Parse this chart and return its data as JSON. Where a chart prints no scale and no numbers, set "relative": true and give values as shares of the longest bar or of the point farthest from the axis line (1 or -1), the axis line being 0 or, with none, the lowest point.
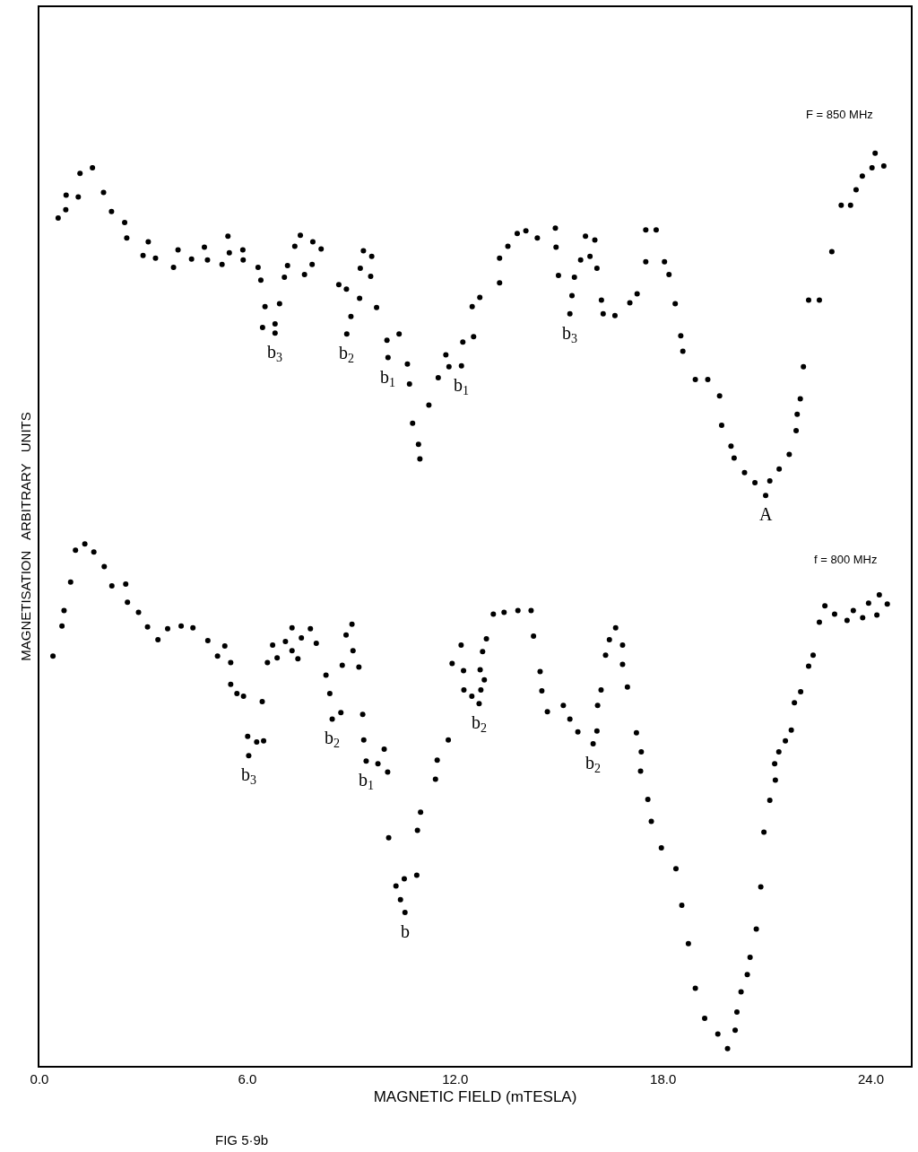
{
  "chart_data": {
    "type": "scatter",
    "relative": true,
    "xlabel": "MAGNETIC FIELD (mTESLA)",
    "ylabel": "MAGNETISATION   ARBITRARY   UNITS",
    "xlim": [
      0,
      25.15
    ],
    "xticks": [
      {
        "value": 0,
        "label": "0.0"
      },
      {
        "value": 6,
        "label": "6.0"
      },
      {
        "value": 12,
        "label": "12.0"
      },
      {
        "value": 18,
        "label": "18.0"
      },
      {
        "value": 24,
        "label": "24.0"
      }
    ],
    "tick_labels": "x",
    "legend": false,
    "marker": "circle",
    "series": [
      {
        "name": "F = 850 MHz",
        "color": "#000000",
        "x": [
          0.54,
          0.76,
          0.77,
          1.12,
          1.17,
          1.53,
          1.85,
          2.08,
          2.46,
          2.52,
          3.14,
          2.99,
          3.35,
          3.87,
          4.0,
          4.39,
          4.76,
          4.85,
          5.27,
          5.44,
          5.48,
          5.87,
          5.88,
          6.31,
          6.39,
          6.51,
          6.93,
          6.44,
          6.8,
          6.8,
          7.07,
          7.16,
          7.37,
          7.53,
          7.65,
          7.87,
          7.89,
          8.13,
          8.64,
          8.86,
          9.35,
          9.59,
          9.26,
          9.56,
          9.24,
          9.73,
          8.99,
          8.87,
          10.03,
          10.38,
          10.06,
          10.62,
          10.68,
          11.24,
          10.77,
          10.94,
          10.98,
          11.51,
          11.82,
          11.73,
          12.18,
          12.22,
          12.53,
          12.49,
          12.71,
          13.28,
          13.28,
          13.52,
          13.79,
          14.04,
          14.37,
          14.89,
          14.91,
          14.98,
          15.44,
          15.37,
          15.31,
          15.76,
          16.03,
          15.62,
          15.89,
          16.09,
          16.22,
          16.27,
          16.61,
          17.04,
          17.25,
          17.5,
          17.8,
          17.5,
          18.04,
          18.17,
          18.35,
          18.51,
          18.57,
          18.93,
          19.29,
          19.63,
          19.69,
          19.96,
          20.05,
          20.35,
          20.65,
          20.96,
          21.08,
          21.35,
          21.64,
          21.84,
          21.87,
          21.96,
          22.05,
          22.2,
          22.51,
          22.87,
          23.14,
          23.41,
          23.57,
          23.75,
          24.03,
          24.12,
          24.37
        ],
        "values": [
          0.929,
          0.938,
          0.954,
          0.952,
          0.978,
          0.984,
          0.957,
          0.936,
          0.924,
          0.907,
          0.903,
          0.888,
          0.885,
          0.875,
          0.894,
          0.884,
          0.897,
          0.883,
          0.878,
          0.909,
          0.891,
          0.894,
          0.883,
          0.875,
          0.861,
          0.832,
          0.835,
          0.809,
          0.813,
          0.803,
          0.864,
          0.877,
          0.898,
          0.91,
          0.867,
          0.878,
          0.903,
          0.895,
          0.856,
          0.851,
          0.893,
          0.887,
          0.874,
          0.865,
          0.841,
          0.831,
          0.821,
          0.802,
          0.795,
          0.802,
          0.776,
          0.769,
          0.747,
          0.724,
          0.704,
          0.681,
          0.665,
          0.754,
          0.766,
          0.779,
          0.767,
          0.793,
          0.799,
          0.832,
          0.842,
          0.858,
          0.885,
          0.898,
          0.912,
          0.915,
          0.907,
          0.918,
          0.897,
          0.866,
          0.864,
          0.844,
          0.824,
          0.909,
          0.905,
          0.883,
          0.887,
          0.874,
          0.839,
          0.824,
          0.822,
          0.836,
          0.846,
          0.916,
          0.916,
          0.881,
          0.881,
          0.867,
          0.835,
          0.8,
          0.783,
          0.752,
          0.752,
          0.734,
          0.702,
          0.679,
          0.666,
          0.65,
          0.639,
          0.625,
          0.641,
          0.654,
          0.67,
          0.696,
          0.714,
          0.731,
          0.766,
          0.839,
          0.839,
          0.892,
          0.943,
          0.943,
          0.96,
          0.975,
          0.984,
          1.0,
          0.986
        ]
      },
      {
        "name": "f = 800 MHz",
        "color": "#000000",
        "x": [
          0.39,
          0.65,
          0.71,
          0.9,
          1.04,
          1.31,
          1.57,
          1.87,
          2.09,
          2.49,
          2.54,
          2.86,
          3.12,
          3.42,
          3.7,
          4.09,
          4.43,
          4.86,
          5.14,
          5.35,
          5.52,
          5.52,
          5.7,
          5.89,
          6.43,
          6.01,
          6.27,
          6.47,
          6.04,
          6.58,
          6.86,
          6.73,
          7.1,
          7.29,
          7.29,
          7.46,
          7.56,
          7.82,
          7.99,
          8.27,
          8.38,
          8.45,
          8.7,
          8.74,
          8.85,
          9.02,
          9.05,
          9.22,
          9.33,
          9.36,
          9.43,
          9.77,
          9.95,
          10.05,
          10.08,
          10.29,
          10.53,
          10.89,
          10.42,
          10.55,
          11.0,
          10.91,
          11.48,
          11.43,
          11.8,
          11.91,
          12.17,
          12.24,
          12.25,
          12.48,
          12.72,
          12.74,
          12.69,
          12.84,
          12.79,
          12.9,
          13.1,
          13.41,
          13.81,
          14.19,
          14.26,
          14.45,
          14.5,
          14.66,
          15.12,
          15.31,
          15.54,
          15.98,
          16.09,
          16.11,
          16.21,
          16.34,
          16.45,
          16.63,
          16.83,
          16.83,
          16.97,
          17.23,
          17.37,
          17.35,
          17.56,
          17.66,
          17.95,
          18.37,
          18.54,
          18.73,
          18.93,
          19.2,
          19.58,
          19.86,
          20.08,
          20.13,
          20.25,
          20.43,
          20.51,
          20.69,
          20.82,
          20.91,
          21.08,
          21.24,
          21.22,
          21.34,
          21.53,
          21.7,
          21.79,
          21.97,
          22.2,
          22.33,
          22.51,
          22.67,
          22.95,
          23.31,
          23.49,
          23.76,
          23.93,
          24.17,
          24.24,
          24.47
        ],
        "values": [
          0.449,
          0.482,
          0.499,
          0.53,
          0.565,
          0.572,
          0.563,
          0.547,
          0.526,
          0.528,
          0.508,
          0.497,
          0.481,
          0.467,
          0.479,
          0.482,
          0.48,
          0.466,
          0.449,
          0.46,
          0.442,
          0.418,
          0.408,
          0.405,
          0.399,
          0.361,
          0.355,
          0.356,
          0.34,
          0.442,
          0.447,
          0.461,
          0.465,
          0.455,
          0.48,
          0.446,
          0.469,
          0.479,
          0.463,
          0.428,
          0.408,
          0.38,
          0.387,
          0.439,
          0.472,
          0.484,
          0.455,
          0.437,
          0.385,
          0.357,
          0.334,
          0.331,
          0.347,
          0.322,
          0.25,
          0.197,
          0.205,
          0.209,
          0.182,
          0.168,
          0.278,
          0.258,
          0.335,
          0.314,
          0.357,
          0.441,
          0.461,
          0.433,
          0.412,
          0.405,
          0.434,
          0.412,
          0.397,
          0.423,
          0.454,
          0.468,
          0.495,
          0.497,
          0.499,
          0.499,
          0.471,
          0.432,
          0.411,
          0.388,
          0.395,
          0.38,
          0.366,
          0.353,
          0.367,
          0.395,
          0.412,
          0.45,
          0.467,
          0.48,
          0.461,
          0.44,
          0.415,
          0.365,
          0.344,
          0.323,
          0.292,
          0.268,
          0.239,
          0.216,
          0.176,
          0.134,
          0.085,
          0.052,
          0.035,
          0.019,
          0.039,
          0.059,
          0.081,
          0.1,
          0.119,
          0.15,
          0.196,
          0.256,
          0.291,
          0.313,
          0.331,
          0.344,
          0.356,
          0.368,
          0.398,
          0.41,
          0.438,
          0.45,
          0.486,
          0.504,
          0.495,
          0.488,
          0.499,
          0.491,
          0.507,
          0.494,
          0.516,
          0.506
        ]
      }
    ],
    "annotations": [
      {
        "text": "b$_{3}$",
        "x": 6.8,
        "y": 0.803
      },
      {
        "text": "b$_{2}$",
        "x": 8.87,
        "y": 0.802
      },
      {
        "text": "b$_{1}$",
        "x": 10.06,
        "y": 0.776
      },
      {
        "text": "b$_{1}$",
        "x": 12.18,
        "y": 0.767
      },
      {
        "text": "b$_{3}$",
        "x": 15.31,
        "y": 0.824
      },
      {
        "text": "A",
        "x": 20.96,
        "y": 0.625
      },
      {
        "text": "b$_{3}$",
        "x": 6.04,
        "y": 0.34
      },
      {
        "text": "b$_{2}$",
        "x": 8.45,
        "y": 0.38
      },
      {
        "text": "b$_{1}$",
        "x": 9.43,
        "y": 0.334
      },
      {
        "text": "b",
        "x": 10.55,
        "y": 0.168
      },
      {
        "text": "b$_{2}$",
        "x": 12.69,
        "y": 0.397
      },
      {
        "text": "b$_{2}$",
        "x": 15.98,
        "y": 0.353
      },
      "FIG 5·9b"
    ]
  }
}
